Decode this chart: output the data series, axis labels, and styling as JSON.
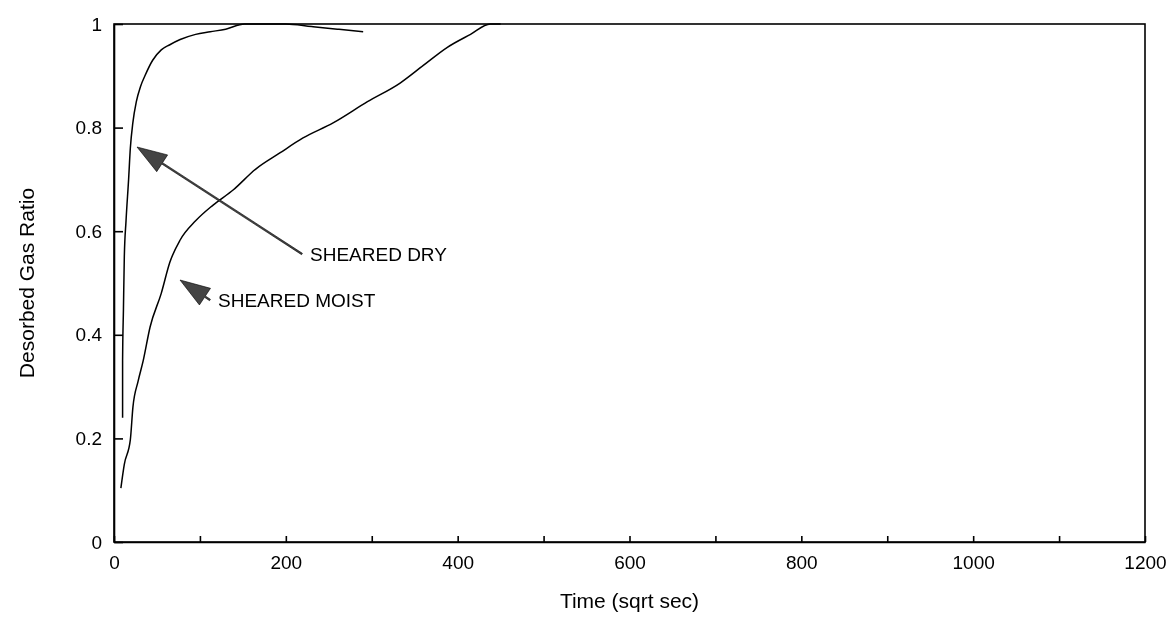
{
  "chart_data": {
    "type": "line",
    "xlabel": "Time (sqrt sec)",
    "ylabel": "Desorbed Gas Ratio",
    "xlim": [
      0,
      1200
    ],
    "ylim": [
      0,
      1
    ],
    "xticks": [
      0,
      {
        "value": 100,
        "label": null
      },
      200,
      {
        "value": 300,
        "label": null
      },
      400,
      {
        "value": 500,
        "label": null
      },
      600,
      {
        "value": 700,
        "label": null
      },
      800,
      {
        "value": 900,
        "label": null
      },
      1000,
      {
        "value": 1100,
        "label": null
      },
      1200
    ],
    "yticks": [
      0,
      0.2,
      0.4,
      0.6,
      0.8,
      1
    ],
    "grid": false,
    "marker": "none",
    "line_style": "solid",
    "series": [
      {
        "color": "#000000",
        "x": [
          10,
          10,
          11,
          12,
          14,
          17,
          19,
          22,
          26,
          31,
          36,
          45,
          55,
          65,
          77,
          95,
          112,
          130,
          152,
          175,
          200,
          230,
          260,
          290
        ],
        "values": [
          0.24,
          0.35,
          0.45,
          0.55,
          0.62,
          0.7,
          0.76,
          0.81,
          0.85,
          0.88,
          0.9,
          0.93,
          0.95,
          0.96,
          0.97,
          0.98,
          0.985,
          0.99,
          1.0,
          1.0,
          1.0,
          0.995,
          0.99,
          0.985
        ]
      },
      {
        "color": "#000000",
        "x": [
          8,
          12,
          19,
          22,
          28,
          34,
          42,
          55,
          65,
          77,
          95,
          115,
          139,
          165,
          193,
          220,
          255,
          295,
          333,
          360,
          388,
          415,
          438,
          450
        ],
        "values": [
          0.104,
          0.15,
          0.197,
          0.26,
          0.31,
          0.35,
          0.415,
          0.48,
          0.54,
          0.583,
          0.62,
          0.65,
          0.68,
          0.72,
          0.751,
          0.78,
          0.809,
          0.85,
          0.886,
          0.92,
          0.955,
          0.98,
          1.0,
          1.0
        ]
      }
    ],
    "annotations": [
      "SHEARED DRY",
      "SHEARED MOIST"
    ]
  }
}
